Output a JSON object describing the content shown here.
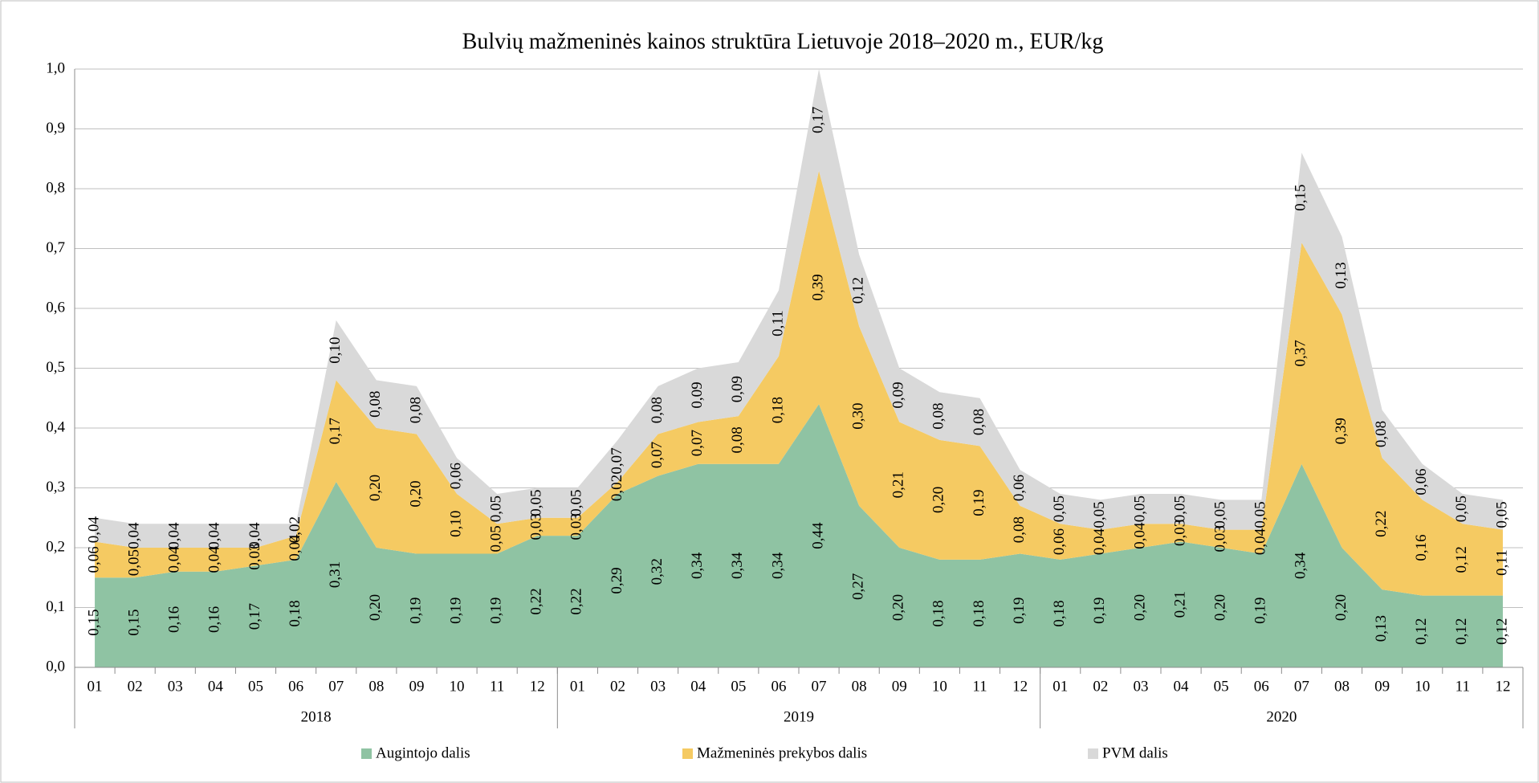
{
  "chart_data": {
    "type": "stacked_area",
    "title": "Bulvių mažmeninės kainos struktūra Lietuvoje 2018–2020 m., EUR/kg",
    "categories": [
      "01",
      "02",
      "03",
      "04",
      "05",
      "06",
      "07",
      "08",
      "09",
      "10",
      "11",
      "12",
      "01",
      "02",
      "03",
      "04",
      "05",
      "06",
      "07",
      "08",
      "09",
      "10",
      "11",
      "12",
      "01",
      "02",
      "03",
      "04",
      "05",
      "06",
      "07",
      "08",
      "09",
      "10",
      "11",
      "12"
    ],
    "category_groups": [
      "2018",
      "2019",
      "2020"
    ],
    "ylim": [
      0,
      1
    ],
    "yticks": [
      {
        "value": 0,
        "label": "0,0"
      },
      {
        "value": 0.1,
        "label": "0,1"
      },
      {
        "value": 0.2,
        "label": "0,2"
      },
      {
        "value": 0.3,
        "label": "0,3"
      },
      {
        "value": 0.4,
        "label": "0,4"
      },
      {
        "value": 0.5,
        "label": "0,5"
      },
      {
        "value": 0.6,
        "label": "0,6"
      },
      {
        "value": 0.7,
        "label": "0,7"
      },
      {
        "value": 0.8,
        "label": "0,8"
      },
      {
        "value": 0.9,
        "label": "0,9"
      },
      {
        "value": 1,
        "label": "1,0"
      }
    ],
    "grid": true,
    "legend": "bottom",
    "series": [
      {
        "name": "Augintojo dalis",
        "color": "#8fc3a3",
        "values": [
          0.15,
          0.15,
          0.16,
          0.16,
          0.17,
          0.18,
          0.31,
          0.2,
          0.19,
          0.19,
          0.19,
          0.22,
          0.22,
          0.29,
          0.32,
          0.34,
          0.34,
          0.34,
          0.44,
          0.27,
          0.2,
          0.18,
          0.18,
          0.19,
          0.18,
          0.19,
          0.2,
          0.21,
          0.2,
          0.19,
          0.34,
          0.2,
          0.13,
          0.12,
          0.12,
          0.12
        ],
        "value_labels": [
          "0,15",
          "0,15",
          "0,16",
          "0,16",
          "0,17",
          "0,18",
          "0,31",
          "0,20",
          "0,19",
          "0,19",
          "0,19",
          "0,22",
          "0,22",
          "0,29",
          "0,32",
          "0,34",
          "0,34",
          "0,34",
          "0,44",
          "0,27",
          "0,20",
          "0,18",
          "0,18",
          "0,19",
          "0,18",
          "0,19",
          "0,20",
          "0,21",
          "0,20",
          "0,19",
          "0,34",
          "0,20",
          "0,13",
          "0,12",
          "0,12",
          "0,12"
        ]
      },
      {
        "name": "Mažmeninės prekybos dalis",
        "color": "#f5ca62",
        "values": [
          0.06,
          0.05,
          0.04,
          0.04,
          0.03,
          0.04,
          0.17,
          0.2,
          0.2,
          0.1,
          0.05,
          0.03,
          0.03,
          0.02,
          0.07,
          0.07,
          0.08,
          0.18,
          0.39,
          0.3,
          0.21,
          0.2,
          0.19,
          0.08,
          0.06,
          0.04,
          0.04,
          0.03,
          0.03,
          0.04,
          0.37,
          0.39,
          0.22,
          0.16,
          0.12,
          0.11
        ],
        "value_labels": [
          "0,06",
          "0,05",
          "0,04",
          "0,04",
          "0,03",
          "0,04",
          "0,17",
          "0,20",
          "0,20",
          "0,10",
          "0,05",
          "0,03",
          "0,03",
          "0,02",
          "0,07",
          "0,07",
          "0,08",
          "0,18",
          "0,39",
          "0,30",
          "0,21",
          "0,20",
          "0,19",
          "0,08",
          "0,06",
          "0,04",
          "0,04",
          "0,03",
          "0,03",
          "0,04",
          "0,37",
          "0,39",
          "0,22",
          "0,16",
          "0,12",
          "0,11"
        ]
      },
      {
        "name": "PVM dalis",
        "color": "#d9d9d9",
        "values": [
          0.04,
          0.04,
          0.04,
          0.04,
          0.04,
          0.02,
          0.1,
          0.08,
          0.08,
          0.06,
          0.05,
          0.05,
          0.05,
          0.07,
          0.08,
          0.09,
          0.09,
          0.11,
          0.17,
          0.12,
          0.09,
          0.08,
          0.08,
          0.06,
          0.05,
          0.05,
          0.05,
          0.05,
          0.05,
          0.05,
          0.15,
          0.13,
          0.08,
          0.06,
          0.05,
          0.05
        ],
        "value_labels": [
          "0,04",
          "0,04",
          "0,04",
          "0,04",
          "0,04",
          "0,02",
          "0,10",
          "0,08",
          "0,08",
          "0,06",
          "0,05",
          "0,05",
          "0,05",
          "0,07",
          "0,08",
          "0,09",
          "0,09",
          "0,11",
          "0,17",
          "0,12",
          "0,09",
          "0,08",
          "0,08",
          "0,06",
          "0,05",
          "0,05",
          "0,05",
          "0,05",
          "0,05",
          "0,05",
          "0,15",
          "0,13",
          "0,08",
          "0,06",
          "0,05",
          "0,05"
        ]
      }
    ]
  }
}
